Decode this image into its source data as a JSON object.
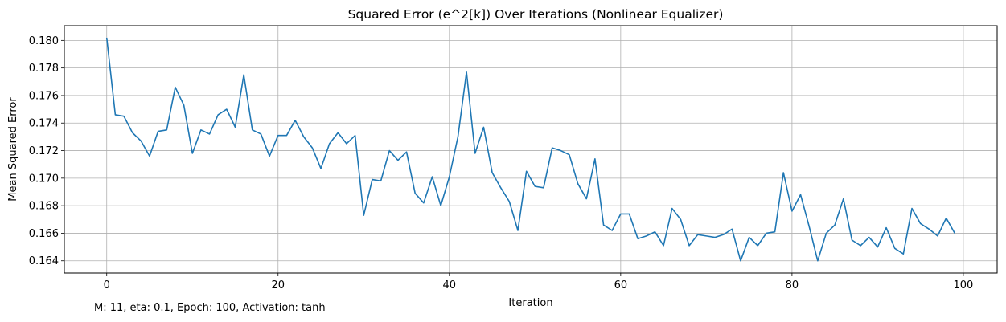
{
  "chart_data": {
    "type": "line",
    "title": "Squared Error (e^2[k]) Over Iterations (Nonlinear Equalizer)",
    "xlabel": "Iteration",
    "ylabel": "Mean Squared Error",
    "xlim": [
      -4.95,
      103.95
    ],
    "ylim": [
      0.16311,
      0.18107
    ],
    "xticks": [
      0,
      20,
      40,
      60,
      80,
      100
    ],
    "xtick_labels": [
      "0",
      "20",
      "40",
      "60",
      "80",
      "100"
    ],
    "yticks": [
      0.164,
      0.166,
      0.168,
      0.17,
      0.172,
      0.174,
      0.176,
      0.178,
      0.18
    ],
    "ytick_labels": [
      "0.164",
      "0.166",
      "0.168",
      "0.170",
      "0.172",
      "0.174",
      "0.176",
      "0.178",
      "0.180"
    ],
    "grid": true,
    "line_color": "#1f77b4",
    "annotation": "M: 11, eta: 0.1, Epoch: 100, Activation: tanh",
    "series": [
      {
        "values": [
          0.1802,
          0.1746,
          0.1745,
          0.1733,
          0.1727,
          0.1716,
          0.1734,
          0.1735,
          0.1766,
          0.1753,
          0.1718,
          0.1735,
          0.1732,
          0.1746,
          0.175,
          0.1737,
          0.1775,
          0.1735,
          0.1732,
          0.1716,
          0.1731,
          0.1731,
          0.1742,
          0.173,
          0.1722,
          0.1707,
          0.1725,
          0.1733,
          0.1725,
          0.1731,
          0.1673,
          0.1699,
          0.1698,
          0.172,
          0.1713,
          0.1719,
          0.1689,
          0.1682,
          0.1701,
          0.168,
          0.1701,
          0.173,
          0.1777,
          0.1718,
          0.1737,
          0.1704,
          0.1693,
          0.1683,
          0.1662,
          0.1705,
          0.1694,
          0.1693,
          0.1722,
          0.172,
          0.1717,
          0.1696,
          0.1685,
          0.1714,
          0.1666,
          0.1662,
          0.1674,
          0.1674,
          0.1656,
          0.1658,
          0.1661,
          0.1651,
          0.1678,
          0.167,
          0.1651,
          0.1659,
          0.1658,
          0.1657,
          0.1659,
          0.1663,
          0.164,
          0.1657,
          0.1651,
          0.166,
          0.1661,
          0.1704,
          0.1676,
          0.1688,
          0.1665,
          0.164,
          0.166,
          0.1666,
          0.1685,
          0.1655,
          0.1651,
          0.1657,
          0.165,
          0.1664,
          0.1649,
          0.1645,
          0.1678,
          0.1667,
          0.1663,
          0.1658,
          0.1671,
          0.166
        ]
      }
    ]
  }
}
